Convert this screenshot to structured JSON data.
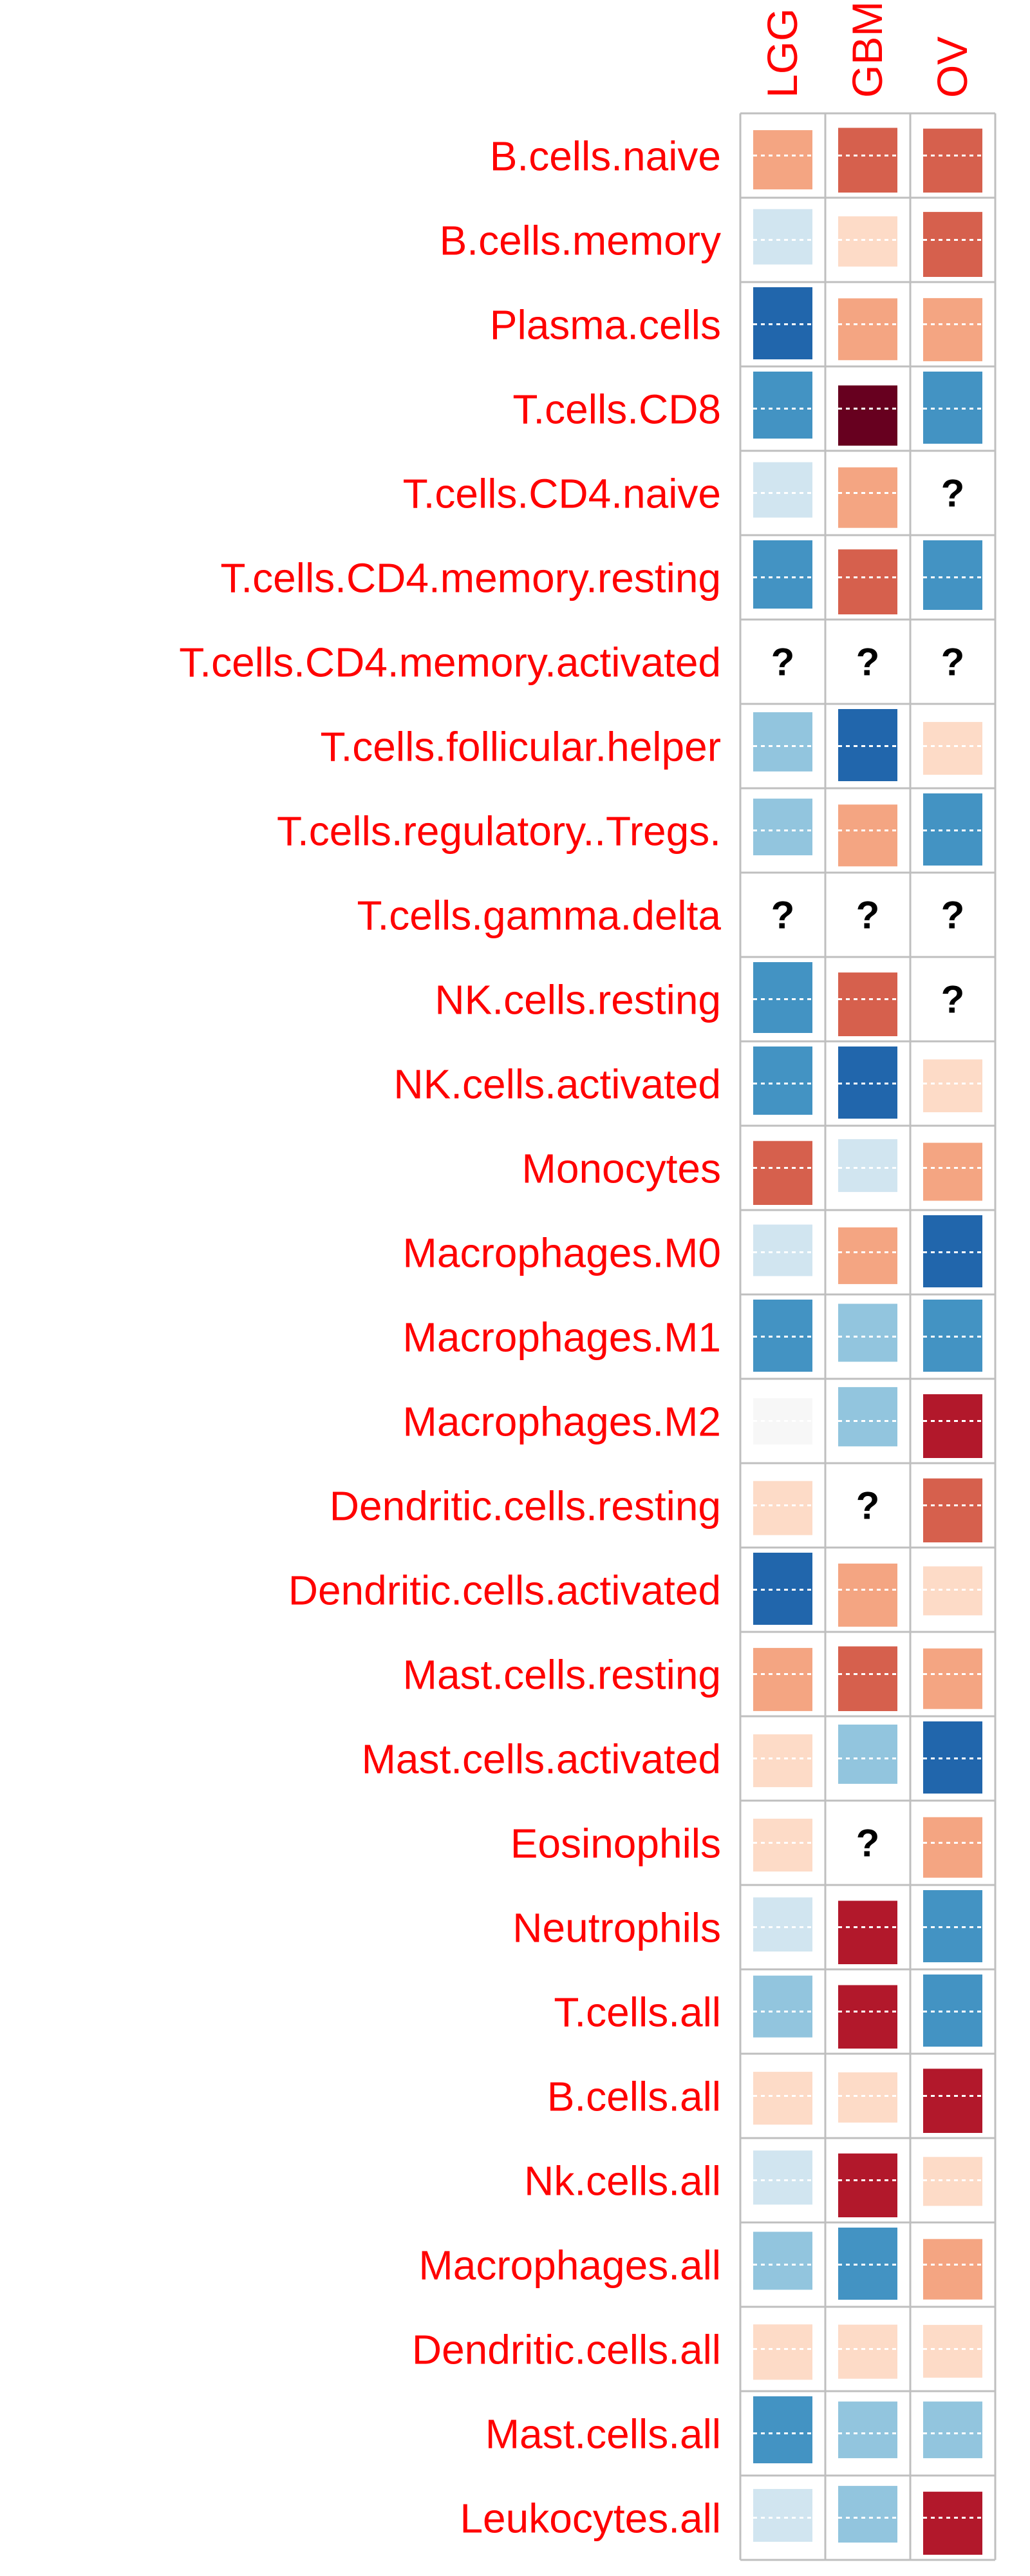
{
  "chart_data": {
    "type": "heatmap",
    "columns": [
      "LGG",
      "GBM",
      "OV"
    ],
    "rows": [
      "B.cells.naive",
      "B.cells.memory",
      "Plasma.cells",
      "T.cells.CD8",
      "T.cells.CD4.naive",
      "T.cells.CD4.memory.resting",
      "T.cells.CD4.memory.activated",
      "T.cells.follicular.helper",
      "T.cells.regulatory..Tregs.",
      "T.cells.gamma.delta",
      "NK.cells.resting",
      "NK.cells.activated",
      "Monocytes",
      "Macrophages.M0",
      "Macrophages.M1",
      "Macrophages.M2",
      "Dendritic.cells.resting",
      "Dendritic.cells.activated",
      "Mast.cells.resting",
      "Mast.cells.activated",
      "Eosinophils",
      "Neutrophils",
      "T.cells.all",
      "B.cells.all",
      "Nk.cells.all",
      "Macrophages.all",
      "Dendritic.cells.all",
      "Mast.cells.all",
      "Leukocytes.all"
    ],
    "values": [
      [
        0.55,
        1.0,
        0.85
      ],
      [
        -0.4,
        0.2,
        1.05
      ],
      [
        -1.35,
        0.65,
        0.7
      ],
      [
        -0.85,
        1.9,
        -1.2
      ],
      [
        -0.4,
        0.6,
        null
      ],
      [
        -0.9,
        1.05,
        -0.95
      ],
      [
        null,
        null,
        null
      ],
      [
        -0.55,
        -1.4,
        0.3
      ],
      [
        -0.45,
        0.65,
        -1.25
      ],
      [
        null,
        null,
        null
      ],
      [
        -1.0,
        0.8,
        null
      ],
      [
        -0.9,
        -1.55,
        0.3
      ],
      [
        0.85,
        -0.3,
        0.5
      ],
      [
        -0.25,
        0.45,
        -1.4
      ],
      [
        -1.2,
        -0.5,
        -1.1
      ],
      [
        0.05,
        -0.55,
        1.2
      ],
      [
        0.35,
        null,
        0.85
      ],
      [
        -1.35,
        0.7,
        0.15
      ],
      [
        0.7,
        1.0,
        0.6
      ],
      [
        0.3,
        -0.55,
        -1.45
      ],
      [
        0.3,
        null,
        0.6
      ],
      [
        -0.35,
        1.25,
        -1.15
      ],
      [
        -0.65,
        1.25,
        -1.1
      ],
      [
        0.3,
        0.2,
        1.15
      ],
      [
        -0.35,
        1.2,
        0.15
      ],
      [
        -0.5,
        -1.1,
        0.6
      ],
      [
        0.4,
        0.35,
        0.3
      ],
      [
        -0.85,
        -0.45,
        -0.45
      ],
      [
        -0.3,
        -0.45,
        1.3
      ]
    ],
    "missing_marker": "?",
    "colors": {
      "label": "#ff0000",
      "grid": "#bfbfbf",
      "scale": [
        "#2166ac",
        "#4393c3",
        "#92c5de",
        "#d1e5f0",
        "#f7f7f7",
        "#fddbc7",
        "#f4a582",
        "#d6604d",
        "#b2182b",
        "#67001f"
      ]
    },
    "legend": "none",
    "grid": true
  }
}
